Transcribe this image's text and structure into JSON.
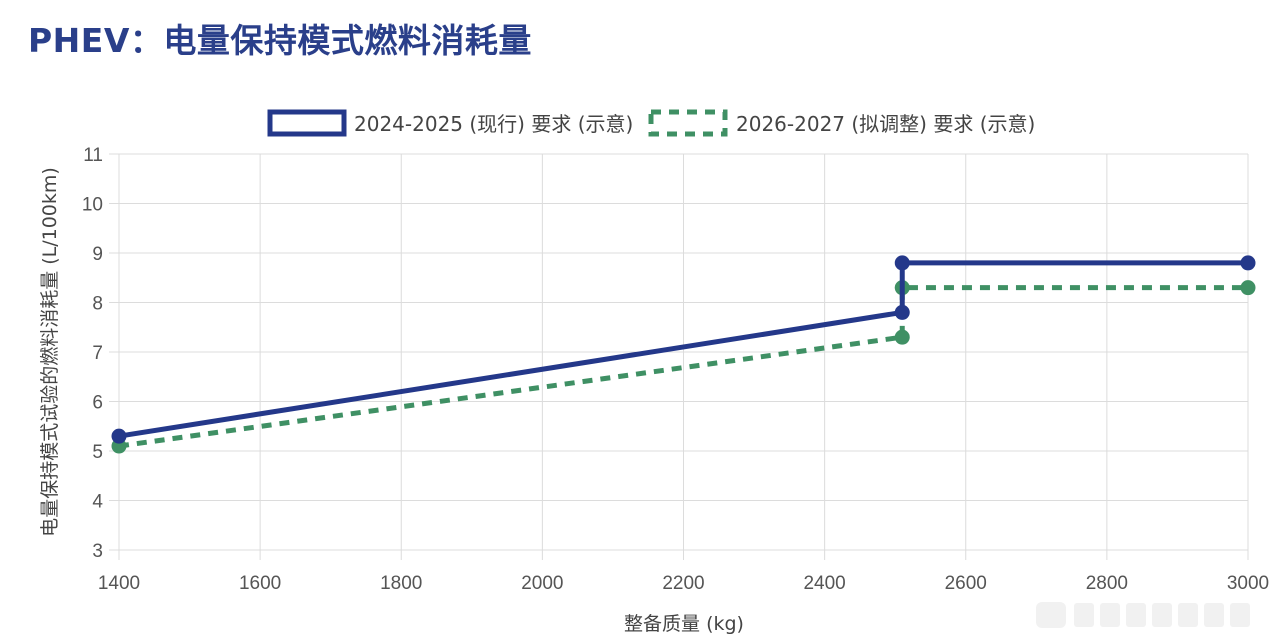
{
  "title": "PHEV：电量保持模式燃料消耗量",
  "chart_data": {
    "type": "line",
    "xlabel": "整备质量 (kg)",
    "ylabel": "电量保持模式试验的燃料消耗量 (L/100km)",
    "xlim": [
      1400,
      3000
    ],
    "ylim": [
      3,
      11
    ],
    "xticks": [
      1400,
      1600,
      1800,
      2000,
      2200,
      2400,
      2600,
      2800,
      3000
    ],
    "yticks": [
      3,
      4,
      5,
      6,
      7,
      8,
      9,
      10,
      11
    ],
    "grid": true,
    "legend_position": "top-center",
    "series": [
      {
        "name": "2024-2025 (现行) 要求 (示意)",
        "color": "#24388a",
        "style": "solid",
        "points": [
          [
            1400,
            5.3
          ],
          [
            2510,
            7.8
          ],
          [
            2510,
            8.8
          ],
          [
            3000,
            8.8
          ]
        ]
      },
      {
        "name": "2026-2027 (拟调整) 要求 (示意)",
        "color": "#3f9064",
        "style": "dashed",
        "points": [
          [
            1400,
            5.1
          ],
          [
            2510,
            7.3
          ],
          [
            2510,
            8.3
          ],
          [
            3000,
            8.3
          ]
        ]
      }
    ]
  }
}
